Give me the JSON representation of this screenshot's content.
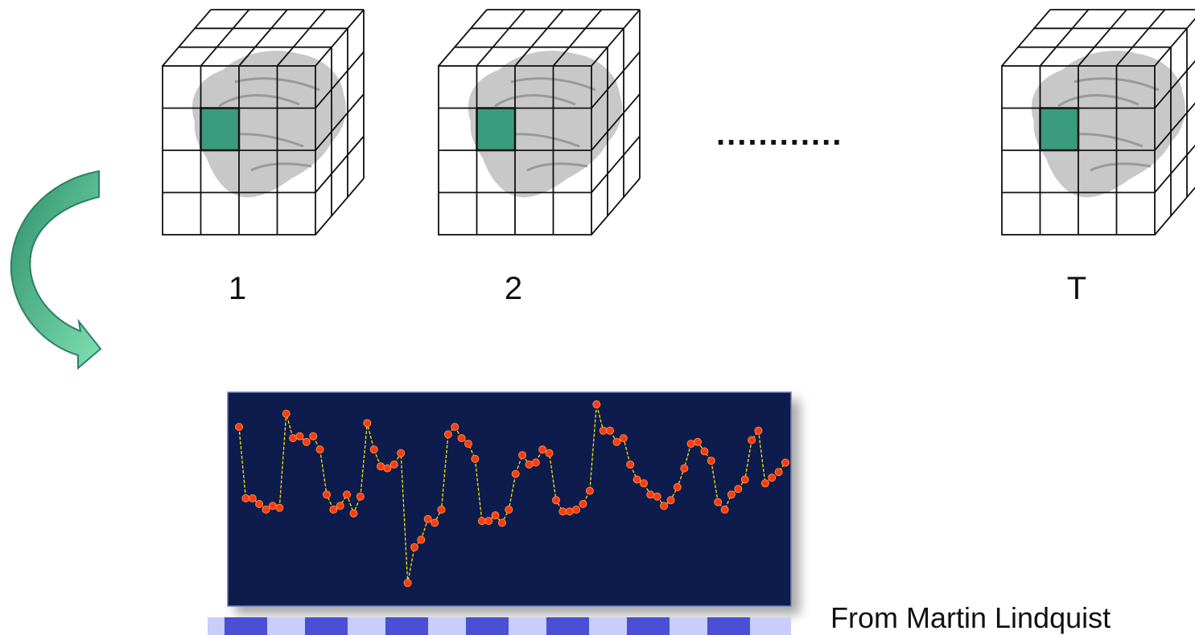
{
  "volumes": [
    {
      "label": "1"
    },
    {
      "label": "2"
    },
    {
      "label": "T"
    }
  ],
  "ellipsis": "............",
  "caption": "From Martin Lindquist",
  "colors": {
    "voxel": "#3a9b7f",
    "arrow_fill": "#5cc89a",
    "arrow_stroke": "#2f7f62",
    "plot_bg": "#0b1a4d",
    "trace_line": "#ffe000",
    "trace_point": "#ff3a14",
    "design_dark": "#4a4fd6",
    "design_light": "#c9cdfa",
    "brain": "#9a9a9a"
  },
  "chart_data": {
    "type": "line",
    "title": "",
    "xlabel": "",
    "ylabel": "",
    "y": [
      88,
      50,
      50,
      47,
      44,
      46,
      45,
      95,
      82,
      83,
      80,
      83,
      76,
      52,
      44,
      46,
      52,
      42,
      51,
      90,
      76,
      67,
      66,
      68,
      74,
      5,
      24,
      28,
      39,
      37,
      44,
      84,
      88,
      82,
      79,
      71,
      38,
      38,
      41,
      37,
      44,
      63,
      73,
      68,
      69,
      76,
      74,
      49,
      43,
      43,
      44,
      47,
      54,
      100,
      86,
      86,
      80,
      82,
      68,
      60,
      58,
      52,
      51,
      46,
      49,
      56,
      66,
      79,
      80,
      75,
      70,
      48,
      44,
      52,
      55,
      60,
      81,
      86,
      58,
      61,
      64,
      69
    ]
  }
}
